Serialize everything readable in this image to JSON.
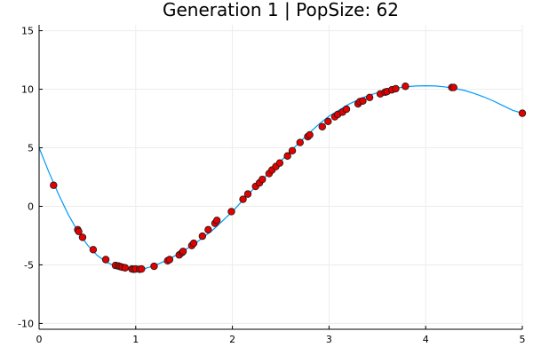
{
  "chart_data": {
    "type": "scatter",
    "title": "Generation 1 | PopSize: 62",
    "xlabel": "",
    "ylabel": "",
    "xlim": [
      0,
      5
    ],
    "ylim": [
      -10.5,
      15.5
    ],
    "x_ticks": [
      0,
      1,
      2,
      3,
      4,
      5
    ],
    "x_tick_labels": [
      "0",
      "1",
      "2",
      "3",
      "4",
      "5"
    ],
    "y_ticks": [
      -10,
      -5,
      0,
      5,
      10,
      15
    ],
    "y_tick_labels": [
      "-10",
      "-5",
      "0",
      "5",
      "10",
      "15"
    ],
    "grid": true,
    "legend": "none",
    "colors": {
      "curve": "#009af9",
      "points": "#e30000",
      "point_stroke": "#1a1a1a",
      "axis": "#000000",
      "grid": "#ececec"
    },
    "curve": {
      "x": [
        0.0,
        0.1,
        0.2,
        0.3,
        0.4,
        0.5,
        0.6,
        0.7,
        0.8,
        0.9,
        1.0,
        1.1,
        1.2,
        1.3,
        1.4,
        1.5,
        1.6,
        1.7,
        1.8,
        1.9,
        2.0,
        2.1,
        2.2,
        2.3,
        2.4,
        2.5,
        2.6,
        2.7,
        2.8,
        2.9,
        3.0,
        3.1,
        3.2,
        3.3,
        3.4,
        3.5,
        3.6,
        3.7,
        3.8,
        3.9,
        4.0,
        4.1,
        4.2,
        4.3,
        4.4,
        4.5,
        4.6,
        4.7,
        4.8,
        4.9,
        5.0
      ],
      "y": [
        5.0,
        2.95,
        1.05,
        -0.67,
        -2.13,
        -3.3,
        -4.18,
        -4.78,
        -5.14,
        -5.3,
        -5.35,
        -5.3,
        -5.05,
        -4.68,
        -4.25,
        -3.77,
        -3.25,
        -2.65,
        -2.0,
        -1.23,
        -0.45,
        0.45,
        1.33,
        2.2,
        3.05,
        3.85,
        4.7,
        5.5,
        6.3,
        7.05,
        7.7,
        8.2,
        8.7,
        9.1,
        9.45,
        9.7,
        9.95,
        10.1,
        10.22,
        10.28,
        10.3,
        10.28,
        10.2,
        10.07,
        9.9,
        9.65,
        9.35,
        9.0,
        8.6,
        8.2,
        7.95
      ]
    },
    "points": {
      "x": [
        0.15,
        0.4,
        0.41,
        0.45,
        0.56,
        0.69,
        0.79,
        0.82,
        0.84,
        0.86,
        0.89,
        0.96,
        0.98,
        1.0,
        1.04,
        1.06,
        1.19,
        1.33,
        1.35,
        1.45,
        1.48,
        1.49,
        1.58,
        1.6,
        1.69,
        1.75,
        1.82,
        1.84,
        1.99,
        2.11,
        2.16,
        2.24,
        2.28,
        2.31,
        2.38,
        2.41,
        2.45,
        2.49,
        2.57,
        2.62,
        2.7,
        2.78,
        2.8,
        2.93,
        2.99,
        3.06,
        3.09,
        3.14,
        3.18,
        3.3,
        3.32,
        3.35,
        3.42,
        3.53,
        3.58,
        3.6,
        3.65,
        3.69,
        3.79,
        4.27,
        4.29,
        5.0
      ],
      "y": [
        1.8,
        -2.0,
        -2.15,
        -2.65,
        -3.7,
        -4.55,
        -5.05,
        -5.1,
        -5.15,
        -5.2,
        -5.25,
        -5.35,
        -5.38,
        -5.35,
        -5.38,
        -5.35,
        -5.12,
        -4.65,
        -4.55,
        -4.15,
        -3.95,
        -3.85,
        -3.35,
        -3.15,
        -2.55,
        -2.0,
        -1.45,
        -1.2,
        -0.45,
        0.6,
        1.05,
        1.7,
        2.0,
        2.3,
        2.8,
        3.1,
        3.4,
        3.7,
        4.3,
        4.75,
        5.45,
        5.95,
        6.1,
        6.8,
        7.25,
        7.65,
        7.85,
        8.05,
        8.3,
        8.75,
        8.95,
        9.0,
        9.3,
        9.6,
        9.75,
        9.8,
        9.95,
        10.05,
        10.25,
        10.15,
        10.15,
        7.95
      ]
    }
  }
}
